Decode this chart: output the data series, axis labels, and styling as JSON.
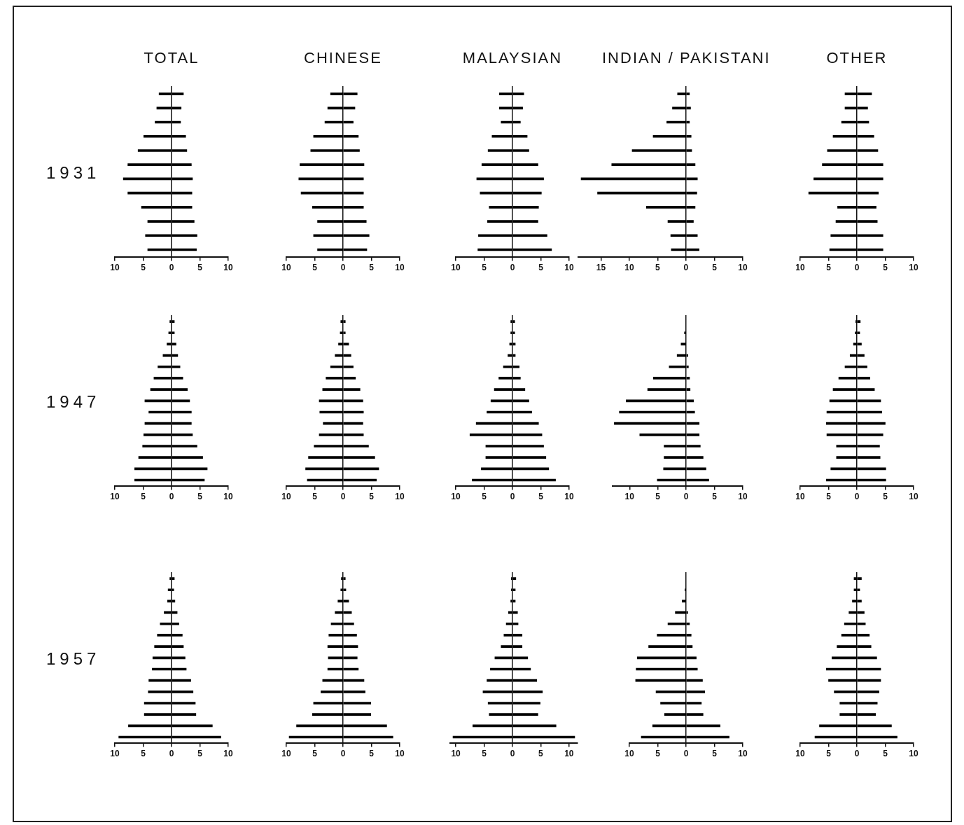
{
  "chart_data": [
    {
      "type": "bar",
      "orientation": "horizontal",
      "stacked": true,
      "tick_labels": "x",
      "title": "TOTAL",
      "ylabel": "1931",
      "categories": [
        null,
        null,
        null,
        null,
        null,
        null,
        null,
        null,
        null,
        null,
        null,
        null
      ],
      "xlim": [
        -10,
        10
      ],
      "xticks": [
        {
          "value": -10,
          "label": "10"
        },
        {
          "value": -5,
          "label": "5"
        },
        0,
        5,
        10
      ],
      "series": [
        {
          "color": "#000000",
          "values": [
            -2.2,
            -2.6,
            -2.9,
            -4.9,
            -5.9,
            -7.7,
            -8.5,
            -7.7,
            -5.3,
            -4.2,
            -4.6,
            -4.2
          ]
        },
        {
          "color": "#000000",
          "values": [
            2.1,
            1.7,
            1.6,
            2.5,
            2.7,
            3.5,
            3.7,
            3.6,
            3.6,
            4.0,
            4.5,
            4.4
          ]
        }
      ]
    },
    {
      "type": "bar",
      "orientation": "horizontal",
      "stacked": true,
      "tick_labels": "x",
      "title": "CHINESE",
      "categories": [
        null,
        null,
        null,
        null,
        null,
        null,
        null,
        null,
        null,
        null,
        null,
        null
      ],
      "xlim": [
        -10,
        10
      ],
      "xticks": [
        {
          "value": -10,
          "label": "10"
        },
        {
          "value": -5,
          "label": "5"
        },
        0,
        5,
        10
      ],
      "series": [
        {
          "color": "#000000",
          "values": [
            -2.2,
            -2.7,
            -3.2,
            -5.2,
            -5.7,
            -7.6,
            -7.8,
            -7.4,
            -5.4,
            -4.5,
            -5.2,
            -4.5
          ]
        },
        {
          "color": "#000000",
          "values": [
            2.5,
            2.1,
            1.8,
            2.7,
            2.9,
            3.7,
            3.6,
            3.6,
            3.6,
            4.1,
            4.6,
            4.2
          ]
        }
      ]
    },
    {
      "type": "bar",
      "orientation": "horizontal",
      "stacked": true,
      "tick_labels": "x",
      "title": "MALAYSIAN",
      "categories": [
        null,
        null,
        null,
        null,
        null,
        null,
        null,
        null,
        null,
        null,
        null,
        null
      ],
      "xlim": [
        -10,
        10
      ],
      "xticks": [
        {
          "value": -10,
          "label": "10"
        },
        {
          "value": -5,
          "label": "5"
        },
        0,
        5,
        10
      ],
      "series": [
        {
          "color": "#000000",
          "values": [
            -2.3,
            -2.3,
            -2.0,
            -3.6,
            -4.3,
            -5.4,
            -6.3,
            -5.7,
            -4.1,
            -4.4,
            -6.0,
            -6.1
          ]
        },
        {
          "color": "#000000",
          "values": [
            2.0,
            1.8,
            1.4,
            2.6,
            2.9,
            4.5,
            5.5,
            5.1,
            4.6,
            4.5,
            6.1,
            6.9
          ]
        }
      ]
    },
    {
      "type": "bar",
      "orientation": "horizontal",
      "stacked": true,
      "tick_labels": "x",
      "title": "INDIAN / PAKISTANI",
      "categories": [
        null,
        null,
        null,
        null,
        null,
        null,
        null,
        null,
        null,
        null,
        null,
        null
      ],
      "xlim": [
        -19,
        10
      ],
      "xticks": [
        {
          "value": -15,
          "label": "15"
        },
        {
          "value": -10,
          "label": "10"
        },
        {
          "value": -5,
          "label": "5"
        },
        0,
        5,
        10
      ],
      "series": [
        {
          "color": "#000000",
          "values": [
            -1.5,
            -2.4,
            -3.4,
            -5.8,
            -9.5,
            -13.1,
            -18.5,
            -15.6,
            -7.0,
            -3.2,
            -2.7,
            -2.6
          ]
        },
        {
          "color": "#000000",
          "values": [
            0.6,
            0.8,
            0.6,
            0.9,
            1.0,
            1.6,
            2.0,
            1.9,
            1.6,
            1.3,
            2.0,
            2.3
          ]
        }
      ]
    },
    {
      "type": "bar",
      "orientation": "horizontal",
      "stacked": true,
      "tick_labels": "x",
      "title": "OTHER",
      "categories": [
        null,
        null,
        null,
        null,
        null,
        null,
        null,
        null,
        null,
        null,
        null,
        null
      ],
      "xlim": [
        -10,
        10
      ],
      "xticks": [
        {
          "value": -10,
          "label": "10"
        },
        {
          "value": -5,
          "label": "5"
        },
        0,
        5,
        10
      ],
      "series": [
        {
          "color": "#000000",
          "values": [
            -2.1,
            -2.1,
            -2.7,
            -4.2,
            -5.2,
            -6.1,
            -7.6,
            -8.5,
            -3.4,
            -3.7,
            -4.6,
            -4.8
          ]
        },
        {
          "color": "#000000",
          "values": [
            2.6,
            1.9,
            2.1,
            3.0,
            3.7,
            4.6,
            4.6,
            3.8,
            3.4,
            3.6,
            4.6,
            4.6
          ]
        }
      ]
    },
    {
      "type": "bar",
      "orientation": "horizontal",
      "stacked": true,
      "tick_labels": "x",
      "ylabel": "1947",
      "categories": [
        null,
        null,
        null,
        null,
        null,
        null,
        null,
        null,
        null,
        null,
        null,
        null,
        null,
        null,
        null
      ],
      "xlim": [
        -10,
        10
      ],
      "xticks": [
        {
          "value": -10,
          "label": "10"
        },
        {
          "value": -5,
          "label": "5"
        },
        0,
        5,
        10
      ],
      "series": [
        {
          "color": "#000000",
          "values": [
            -0.3,
            -0.5,
            -0.8,
            -1.5,
            -2.4,
            -3.1,
            -3.7,
            -4.7,
            -4.0,
            -4.7,
            -4.9,
            -5.1,
            -5.8,
            -6.5,
            -6.5
          ]
        },
        {
          "color": "#000000",
          "values": [
            0.5,
            0.5,
            0.8,
            1.1,
            1.5,
            2.0,
            2.8,
            3.2,
            3.5,
            3.5,
            3.7,
            4.5,
            5.5,
            6.3,
            5.8
          ]
        }
      ]
    },
    {
      "type": "bar",
      "orientation": "horizontal",
      "stacked": true,
      "tick_labels": "x",
      "categories": [
        null,
        null,
        null,
        null,
        null,
        null,
        null,
        null,
        null,
        null,
        null,
        null,
        null,
        null,
        null
      ],
      "xlim": [
        -10,
        10
      ],
      "xticks": [
        {
          "value": -10,
          "label": "10"
        },
        {
          "value": -5,
          "label": "5"
        },
        0,
        5,
        10
      ],
      "series": [
        {
          "color": "#000000",
          "values": [
            -0.4,
            -0.5,
            -0.8,
            -1.4,
            -2.2,
            -3.0,
            -3.6,
            -4.2,
            -4.1,
            -3.5,
            -4.2,
            -5.1,
            -6.1,
            -6.6,
            -6.3
          ]
        },
        {
          "color": "#000000",
          "values": [
            0.4,
            0.4,
            1.0,
            1.4,
            1.8,
            2.2,
            3.0,
            3.5,
            3.6,
            3.5,
            3.6,
            4.5,
            5.6,
            6.3,
            5.9
          ]
        }
      ]
    },
    {
      "type": "bar",
      "orientation": "horizontal",
      "stacked": true,
      "tick_labels": "x",
      "categories": [
        null,
        null,
        null,
        null,
        null,
        null,
        null,
        null,
        null,
        null,
        null,
        null,
        null,
        null,
        null
      ],
      "xlim": [
        -10,
        10
      ],
      "xticks": [
        {
          "value": -10,
          "label": "10"
        },
        {
          "value": -5,
          "label": "5"
        },
        0,
        5,
        10
      ],
      "series": [
        {
          "color": "#000000",
          "values": [
            -0.3,
            -0.3,
            -0.5,
            -0.8,
            -1.6,
            -2.4,
            -3.2,
            -3.8,
            -4.5,
            -6.4,
            -7.5,
            -4.7,
            -4.7,
            -5.5,
            -7.1
          ]
        },
        {
          "color": "#000000",
          "values": [
            0.4,
            0.4,
            0.5,
            0.5,
            1.2,
            1.4,
            2.2,
            2.9,
            3.4,
            4.6,
            5.2,
            5.5,
            5.9,
            6.4,
            7.6
          ]
        }
      ]
    },
    {
      "type": "bar",
      "orientation": "horizontal",
      "stacked": true,
      "tick_labels": "x",
      "categories": [
        null,
        null,
        null,
        null,
        null,
        null,
        null,
        null,
        null,
        null,
        null,
        null,
        null,
        null,
        null
      ],
      "xlim": [
        -13,
        10
      ],
      "xticks": [
        {
          "value": -10,
          "label": "10"
        },
        {
          "value": -5,
          "label": "5"
        },
        0,
        5,
        10
      ],
      "series": [
        {
          "color": "#000000",
          "values": [
            null,
            -0.3,
            -0.9,
            -1.6,
            -3.0,
            -5.8,
            -6.8,
            -10.6,
            -11.8,
            -12.7,
            -8.2,
            -3.9,
            -3.9,
            -4.0,
            -5.1
          ]
        },
        {
          "color": "#000000",
          "values": [
            null,
            null,
            null,
            0.3,
            0.4,
            0.6,
            0.7,
            1.3,
            1.5,
            2.3,
            2.3,
            2.5,
            3.0,
            3.5,
            4.0
          ]
        }
      ]
    },
    {
      "type": "bar",
      "orientation": "horizontal",
      "stacked": true,
      "tick_labels": "x",
      "categories": [
        null,
        null,
        null,
        null,
        null,
        null,
        null,
        null,
        null,
        null,
        null,
        null,
        null,
        null,
        null
      ],
      "xlim": [
        -10,
        10
      ],
      "xticks": [
        {
          "value": -10,
          "label": "10"
        },
        {
          "value": -5,
          "label": "5"
        },
        0,
        5,
        10
      ],
      "series": [
        {
          "color": "#000000",
          "values": [
            -0.2,
            -0.3,
            -0.6,
            -1.2,
            -2.1,
            -3.2,
            -4.2,
            -4.8,
            -5.3,
            -5.4,
            -5.3,
            -3.6,
            -3.6,
            -4.6,
            -5.4
          ]
        },
        {
          "color": "#000000",
          "values": [
            0.6,
            0.5,
            0.8,
            1.3,
            1.8,
            2.3,
            3.1,
            4.2,
            4.4,
            5.0,
            4.6,
            4.0,
            4.1,
            5.1,
            5.1
          ]
        }
      ]
    },
    {
      "type": "bar",
      "orientation": "horizontal",
      "stacked": true,
      "tick_labels": "x",
      "ylabel": "1957",
      "categories": [
        null,
        null,
        null,
        null,
        null,
        null,
        null,
        null,
        null,
        null,
        null,
        null,
        null,
        null,
        null
      ],
      "xlim": [
        -10,
        10
      ],
      "xticks": [
        {
          "value": -10,
          "label": "10"
        },
        {
          "value": -5,
          "label": "5"
        },
        0,
        5,
        10
      ],
      "series": [
        {
          "color": "#000000",
          "values": [
            -0.3,
            -0.6,
            -0.7,
            -1.3,
            -2.0,
            -2.5,
            -3.0,
            -3.3,
            -3.4,
            -4.0,
            -4.1,
            -4.8,
            -4.8,
            -7.6,
            -9.3
          ]
        },
        {
          "color": "#000000",
          "values": [
            0.5,
            0.4,
            0.6,
            1.0,
            1.3,
            1.9,
            2.1,
            2.4,
            2.6,
            3.4,
            3.8,
            4.2,
            4.3,
            7.2,
            8.7
          ]
        }
      ]
    },
    {
      "type": "bar",
      "orientation": "horizontal",
      "stacked": true,
      "tick_labels": "x",
      "categories": [
        null,
        null,
        null,
        null,
        null,
        null,
        null,
        null,
        null,
        null,
        null,
        null,
        null,
        null,
        null
      ],
      "xlim": [
        -10,
        10
      ],
      "xticks": [
        {
          "value": -10,
          "label": "10"
        },
        {
          "value": -5,
          "label": "5"
        },
        0,
        5,
        10
      ],
      "series": [
        {
          "color": "#000000",
          "values": [
            -0.3,
            -0.4,
            -0.9,
            -1.4,
            -2.1,
            -2.5,
            -2.7,
            -2.6,
            -2.7,
            -3.6,
            -3.9,
            -5.2,
            -5.4,
            -8.2,
            -9.5
          ]
        },
        {
          "color": "#000000",
          "values": [
            0.4,
            0.5,
            1.0,
            1.5,
            1.9,
            2.4,
            2.6,
            2.5,
            2.7,
            3.7,
            3.9,
            4.9,
            4.9,
            7.7,
            8.8
          ]
        }
      ]
    },
    {
      "type": "bar",
      "orientation": "horizontal",
      "stacked": true,
      "tick_labels": "x",
      "categories": [
        null,
        null,
        null,
        null,
        null,
        null,
        null,
        null,
        null,
        null,
        null,
        null,
        null,
        null,
        null
      ],
      "xlim": [
        -11,
        11.5
      ],
      "xticks": [
        {
          "value": -10,
          "label": "10"
        },
        {
          "value": -5,
          "label": "5"
        },
        0,
        5,
        10
      ],
      "series": [
        {
          "color": "#000000",
          "values": [
            -0.2,
            -0.2,
            -0.3,
            -0.7,
            -1.1,
            -1.5,
            -2.0,
            -3.1,
            -3.9,
            -4.5,
            -5.2,
            -4.3,
            -4.1,
            -7.0,
            -10.5
          ]
        },
        {
          "color": "#000000",
          "values": [
            0.6,
            0.5,
            0.5,
            0.9,
            1.0,
            1.7,
            1.7,
            2.7,
            3.2,
            4.3,
            5.3,
            4.9,
            4.5,
            7.7,
            11.0
          ]
        }
      ]
    },
    {
      "type": "bar",
      "orientation": "horizontal",
      "stacked": true,
      "tick_labels": "x",
      "categories": [
        null,
        null,
        null,
        null,
        null,
        null,
        null,
        null,
        null,
        null,
        null,
        null,
        null,
        null,
        null
      ],
      "xlim": [
        -10,
        10
      ],
      "xticks": [
        {
          "value": -10,
          "label": "10"
        },
        {
          "value": -5,
          "label": "5"
        },
        0,
        5,
        10
      ],
      "series": [
        {
          "color": "#000000",
          "values": [
            null,
            -0.2,
            -0.7,
            -1.9,
            -3.2,
            -5.1,
            -6.6,
            -8.6,
            -8.8,
            -8.9,
            -5.3,
            -4.5,
            -3.8,
            -5.9,
            -7.9
          ]
        },
        {
          "color": "#000000",
          "values": [
            null,
            null,
            null,
            0.3,
            0.6,
            0.9,
            1.1,
            1.8,
            2.0,
            2.9,
            3.3,
            2.7,
            3.0,
            6.0,
            7.6
          ]
        }
      ]
    },
    {
      "type": "bar",
      "orientation": "horizontal",
      "stacked": true,
      "tick_labels": "x",
      "categories": [
        null,
        null,
        null,
        null,
        null,
        null,
        null,
        null,
        null,
        null,
        null,
        null,
        null,
        null,
        null
      ],
      "xlim": [
        -10,
        10
      ],
      "xticks": [
        {
          "value": -10,
          "label": "10"
        },
        {
          "value": -5,
          "label": "5"
        },
        0,
        5,
        10
      ],
      "series": [
        {
          "color": "#000000",
          "values": [
            -0.5,
            -0.5,
            -0.8,
            -1.4,
            -2.2,
            -2.7,
            -3.5,
            -4.4,
            -5.4,
            -5.0,
            -4.0,
            -3.0,
            -3.0,
            -6.6,
            -7.4
          ]
        },
        {
          "color": "#000000",
          "values": [
            0.8,
            0.5,
            0.8,
            1.3,
            1.5,
            2.2,
            2.5,
            3.5,
            4.2,
            4.2,
            3.9,
            3.6,
            3.3,
            6.1,
            7.1
          ]
        }
      ]
    }
  ]
}
